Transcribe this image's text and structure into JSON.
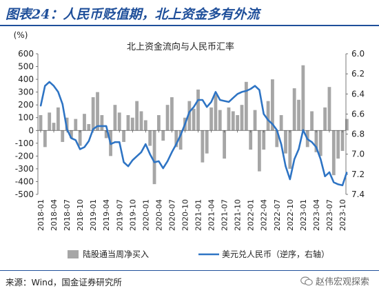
{
  "header": {
    "figure_title": "图表24：人民币贬值期，北上资金多有外流"
  },
  "footer": {
    "source": "来源：Wind，国金证券研究所",
    "watermark": "赵伟宏观探索"
  },
  "icons": {
    "watermark_icon": "wechat-icon"
  },
  "colors": {
    "title": "#1f4f9a",
    "bars": "#a6a6a6",
    "line": "#2e74c4"
  },
  "chart_data": {
    "type": "bar+line",
    "title": "北上资金流向与人民币汇率",
    "left_axis_unit": "(%)",
    "left_ylim": [
      -500,
      600
    ],
    "left_ticks": [
      600,
      500,
      400,
      300,
      200,
      100,
      0,
      -100,
      -200,
      -300,
      -400,
      -500
    ],
    "right_ylim": [
      6.0,
      7.4
    ],
    "right_inverted": true,
    "right_ticks": [
      "6.0",
      "6.2",
      "6.4",
      "6.6",
      "6.8",
      "7.0",
      "7.2",
      "7.4"
    ],
    "x_ticks": [
      "2018-01",
      "2018-04",
      "2018-07",
      "2018-10",
      "2019-01",
      "2019-04",
      "2019-07",
      "2019-10",
      "2020-01",
      "2020-04",
      "2020-07",
      "2020-10",
      "2021-01",
      "2021-04",
      "2021-07",
      "2021-10",
      "2022-01",
      "2022-04",
      "2022-07",
      "2022-10",
      "2023-01",
      "2023-04",
      "2023-07",
      "2023-10"
    ],
    "series": [
      {
        "name": "陆股通当周净买入",
        "axis": "left",
        "kind": "bar",
        "points": [
          [
            "2018-01",
            120
          ],
          [
            "2018-02",
            -130
          ],
          [
            "2018-03",
            140
          ],
          [
            "2018-04",
            60
          ],
          [
            "2018-05",
            180
          ],
          [
            "2018-06",
            -90
          ],
          [
            "2018-07",
            100
          ],
          [
            "2018-08",
            -60
          ],
          [
            "2018-09",
            90
          ],
          [
            "2018-10",
            -120
          ],
          [
            "2018-11",
            130
          ],
          [
            "2018-12",
            50
          ],
          [
            "2019-01",
            260
          ],
          [
            "2019-02",
            300
          ],
          [
            "2019-03",
            120
          ],
          [
            "2019-04",
            -60
          ],
          [
            "2019-05",
            -200
          ],
          [
            "2019-06",
            200
          ],
          [
            "2019-07",
            140
          ],
          [
            "2019-08",
            -90
          ],
          [
            "2019-09",
            120
          ],
          [
            "2019-10",
            100
          ],
          [
            "2019-11",
            230
          ],
          [
            "2019-12",
            150
          ],
          [
            "2020-01",
            80
          ],
          [
            "2020-02",
            -120
          ],
          [
            "2020-03",
            -420
          ],
          [
            "2020-04",
            120
          ],
          [
            "2020-05",
            -80
          ],
          [
            "2020-06",
            200
          ],
          [
            "2020-07",
            260
          ],
          [
            "2020-08",
            -130
          ],
          [
            "2020-09",
            -150
          ],
          [
            "2020-10",
            100
          ],
          [
            "2020-11",
            230
          ],
          [
            "2020-12",
            170
          ],
          [
            "2021-01",
            320
          ],
          [
            "2021-02",
            -250
          ],
          [
            "2021-03",
            -180
          ],
          [
            "2021-04",
            180
          ],
          [
            "2021-05",
            280
          ],
          [
            "2021-06",
            160
          ],
          [
            "2021-07",
            -220
          ],
          [
            "2021-08",
            180
          ],
          [
            "2021-09",
            150
          ],
          [
            "2021-10",
            120
          ],
          [
            "2021-11",
            200
          ],
          [
            "2021-12",
            380
          ],
          [
            "2022-01",
            -150
          ],
          [
            "2022-02",
            160
          ],
          [
            "2022-03",
            -320
          ],
          [
            "2022-04",
            -150
          ],
          [
            "2022-05",
            230
          ],
          [
            "2022-06",
            400
          ],
          [
            "2022-07",
            -130
          ],
          [
            "2022-08",
            120
          ],
          [
            "2022-09",
            -180
          ],
          [
            "2022-10",
            -300
          ],
          [
            "2022-11",
            330
          ],
          [
            "2022-12",
            240
          ],
          [
            "2023-01",
            510
          ],
          [
            "2023-02",
            -130
          ],
          [
            "2023-03",
            150
          ],
          [
            "2023-04",
            -170
          ],
          [
            "2023-05",
            -200
          ],
          [
            "2023-06",
            180
          ],
          [
            "2023-07",
            340
          ],
          [
            "2023-08",
            -350
          ],
          [
            "2023-09",
            -220
          ],
          [
            "2023-10",
            -160
          ],
          [
            "2023-11",
            90
          ]
        ]
      },
      {
        "name": "美元兑人民币（逆序，右轴）",
        "axis": "right",
        "kind": "line",
        "points": [
          [
            "2018-01",
            6.52
          ],
          [
            "2018-02",
            6.32
          ],
          [
            "2018-03",
            6.28
          ],
          [
            "2018-04",
            6.32
          ],
          [
            "2018-05",
            6.38
          ],
          [
            "2018-06",
            6.5
          ],
          [
            "2018-07",
            6.75
          ],
          [
            "2018-08",
            6.84
          ],
          [
            "2018-09",
            6.86
          ],
          [
            "2018-10",
            6.95
          ],
          [
            "2018-11",
            6.93
          ],
          [
            "2018-12",
            6.87
          ],
          [
            "2019-01",
            6.75
          ],
          [
            "2019-02",
            6.72
          ],
          [
            "2019-03",
            6.72
          ],
          [
            "2019-04",
            6.72
          ],
          [
            "2019-05",
            6.9
          ],
          [
            "2019-06",
            6.88
          ],
          [
            "2019-07",
            6.88
          ],
          [
            "2019-08",
            7.08
          ],
          [
            "2019-09",
            7.12
          ],
          [
            "2019-10",
            7.06
          ],
          [
            "2019-11",
            7.02
          ],
          [
            "2019-12",
            6.98
          ],
          [
            "2020-01",
            6.9
          ],
          [
            "2020-02",
            7.0
          ],
          [
            "2020-03",
            7.08
          ],
          [
            "2020-04",
            7.07
          ],
          [
            "2020-05",
            7.14
          ],
          [
            "2020-06",
            7.07
          ],
          [
            "2020-07",
            6.98
          ],
          [
            "2020-08",
            6.9
          ],
          [
            "2020-09",
            6.81
          ],
          [
            "2020-10",
            6.7
          ],
          [
            "2020-11",
            6.58
          ],
          [
            "2020-12",
            6.53
          ],
          [
            "2021-01",
            6.46
          ],
          [
            "2021-02",
            6.46
          ],
          [
            "2021-03",
            6.53
          ],
          [
            "2021-04",
            6.48
          ],
          [
            "2021-05",
            6.38
          ],
          [
            "2021-06",
            6.46
          ],
          [
            "2021-07",
            6.47
          ],
          [
            "2021-08",
            6.48
          ],
          [
            "2021-09",
            6.44
          ],
          [
            "2021-10",
            6.4
          ],
          [
            "2021-11",
            6.38
          ],
          [
            "2021-12",
            6.37
          ],
          [
            "2022-01",
            6.35
          ],
          [
            "2022-02",
            6.32
          ],
          [
            "2022-03",
            6.36
          ],
          [
            "2022-04",
            6.6
          ],
          [
            "2022-05",
            6.66
          ],
          [
            "2022-06",
            6.7
          ],
          [
            "2022-07",
            6.76
          ],
          [
            "2022-08",
            6.9
          ],
          [
            "2022-09",
            7.12
          ],
          [
            "2022-10",
            7.25
          ],
          [
            "2022-11",
            7.05
          ],
          [
            "2022-12",
            6.95
          ],
          [
            "2023-01",
            6.76
          ],
          [
            "2023-02",
            6.85
          ],
          [
            "2023-03",
            6.88
          ],
          [
            "2023-04",
            6.93
          ],
          [
            "2023-05",
            7.05
          ],
          [
            "2023-06",
            7.22
          ],
          [
            "2023-07",
            7.18
          ],
          [
            "2023-08",
            7.28
          ],
          [
            "2023-09",
            7.3
          ],
          [
            "2023-10",
            7.31
          ],
          [
            "2023-11",
            7.18
          ]
        ]
      }
    ],
    "legend_position": "bottom"
  }
}
